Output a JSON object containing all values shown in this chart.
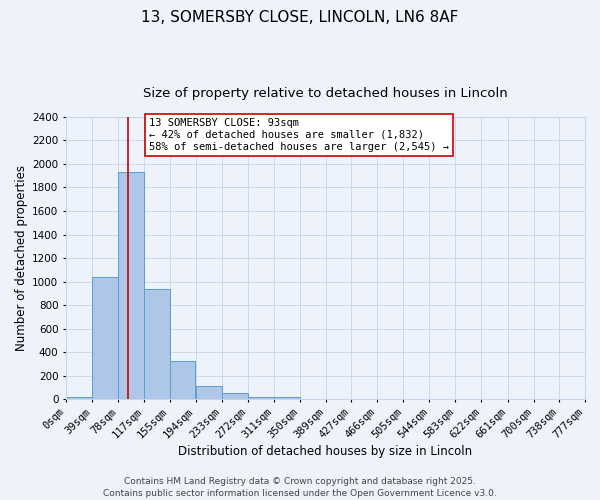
{
  "title": "13, SOMERSBY CLOSE, LINCOLN, LN6 8AF",
  "subtitle": "Size of property relative to detached houses in Lincoln",
  "xlabel": "Distribution of detached houses by size in Lincoln",
  "ylabel": "Number of detached properties",
  "bin_labels": [
    "0sqm",
    "39sqm",
    "78sqm",
    "117sqm",
    "155sqm",
    "194sqm",
    "233sqm",
    "272sqm",
    "311sqm",
    "350sqm",
    "389sqm",
    "427sqm",
    "466sqm",
    "505sqm",
    "544sqm",
    "583sqm",
    "622sqm",
    "661sqm",
    "700sqm",
    "738sqm",
    "777sqm"
  ],
  "bin_edges": [
    0,
    39,
    78,
    117,
    155,
    194,
    233,
    272,
    311,
    350,
    389,
    427,
    466,
    505,
    544,
    583,
    622,
    661,
    700,
    738,
    777
  ],
  "bar_heights": [
    20,
    1035,
    1930,
    940,
    325,
    110,
    50,
    20,
    15,
    0,
    0,
    0,
    0,
    0,
    0,
    0,
    0,
    0,
    0,
    0
  ],
  "bar_color": "#aec6e8",
  "bar_edge_color": "#5a9fd4",
  "vline_x": 93,
  "vline_color": "#cc0000",
  "annotation_text": "13 SOMERSBY CLOSE: 93sqm\n← 42% of detached houses are smaller (1,832)\n58% of semi-detached houses are larger (2,545) →",
  "annotation_box_color": "#ffffff",
  "annotation_box_edge": "#cc0000",
  "ylim": [
    0,
    2400
  ],
  "yticks": [
    0,
    200,
    400,
    600,
    800,
    1000,
    1200,
    1400,
    1600,
    1800,
    2000,
    2200,
    2400
  ],
  "footer": "Contains HM Land Registry data © Crown copyright and database right 2025.\nContains public sector information licensed under the Open Government Licence v3.0.",
  "bg_color": "#eef2fb",
  "grid_color": "#c8d4e8",
  "title_fontsize": 11,
  "subtitle_fontsize": 9.5,
  "axis_label_fontsize": 8.5,
  "tick_fontsize": 7.5,
  "annotation_fontsize": 7.5,
  "footer_fontsize": 6.5
}
